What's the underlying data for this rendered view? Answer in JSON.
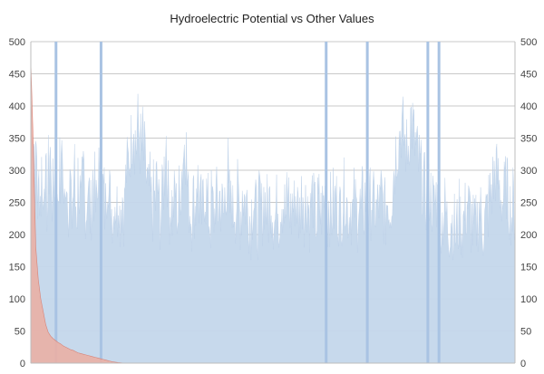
{
  "chart_data": {
    "type": "area",
    "title": "Hydroelectric Potential vs Other Values",
    "xlabel": "",
    "ylabel": "",
    "ylim": [
      0,
      500
    ],
    "yticks": [
      0,
      50,
      100,
      150,
      200,
      250,
      300,
      350,
      400,
      450,
      500
    ],
    "secondary_ylim": [
      0,
      500
    ],
    "grid": true,
    "legend": "none",
    "series": [
      {
        "kind": "spiky-area",
        "color": "#c5d7ec",
        "values": [
          400,
          360,
          340,
          300,
          330,
          250,
          280,
          260,
          300,
          240,
          310,
          270,
          250,
          300,
          330,
          280,
          260,
          290,
          250,
          230,
          270,
          300,
          280,
          350,
          260,
          240,
          300,
          270,
          250,
          280,
          230,
          260,
          300,
          250,
          240,
          290,
          260,
          230,
          270,
          300,
          250,
          240,
          280,
          260,
          230,
          250,
          290,
          270,
          240,
          260,
          300,
          250,
          230,
          270,
          260,
          240,
          280,
          300,
          260,
          250,
          240,
          230,
          260,
          250,
          240,
          270,
          230,
          250,
          260,
          240,
          280,
          300,
          310,
          320,
          340,
          360,
          380,
          350,
          340,
          370,
          360,
          340,
          330,
          350,
          320,
          300,
          280,
          260,
          270,
          250,
          240,
          260,
          250,
          280,
          270,
          240,
          230,
          250,
          280,
          300,
          350,
          300,
          260,
          240,
          250,
          230,
          250,
          270,
          240,
          230,
          260,
          280,
          300,
          320,
          360,
          330,
          280,
          250,
          240,
          230,
          260,
          250,
          240,
          290,
          280,
          250,
          240,
          230,
          250,
          270,
          260,
          240,
          230,
          220,
          250,
          240,
          230,
          260,
          250,
          240,
          260,
          250,
          240,
          230,
          260,
          280,
          300,
          250,
          240,
          260,
          230,
          250,
          240,
          260,
          250,
          230,
          240,
          270,
          260,
          250,
          250,
          240,
          230,
          220,
          240,
          260,
          250,
          230,
          220,
          240,
          250,
          230,
          240,
          260,
          250,
          240,
          230,
          250,
          260,
          240,
          230,
          220,
          240,
          250,
          230,
          240,
          260,
          250,
          240,
          230,
          250,
          260,
          240,
          230,
          250,
          240,
          260,
          250,
          240,
          230,
          250,
          260,
          270,
          240,
          250,
          260,
          240,
          230,
          250,
          260,
          240,
          230,
          220,
          240,
          250,
          230,
          240,
          250,
          260,
          240,
          230,
          250,
          240,
          230,
          250,
          240,
          260,
          250,
          240,
          230,
          250,
          240,
          260,
          270,
          250,
          240,
          230,
          250,
          240,
          230,
          250,
          240,
          230,
          250,
          240,
          230,
          250,
          240,
          260,
          250,
          230,
          240,
          250,
          260,
          240,
          250,
          230,
          240,
          250,
          240,
          260,
          250,
          240,
          230,
          250,
          260,
          240,
          250,
          270,
          300,
          310,
          330,
          340,
          350,
          360,
          370,
          360,
          350,
          340,
          330,
          340,
          360,
          380,
          370,
          350,
          340,
          330,
          320,
          310,
          300,
          290,
          280,
          270,
          260,
          250,
          260,
          270,
          260,
          250,
          240,
          250,
          260,
          250,
          240,
          230,
          220,
          230,
          240,
          230,
          220,
          210,
          220,
          230,
          220,
          210,
          200,
          210,
          220,
          230,
          220,
          210,
          220,
          230,
          240,
          250,
          240,
          230,
          220,
          210,
          200,
          210,
          220,
          230,
          240,
          230,
          220,
          210,
          220,
          230,
          240,
          250,
          260,
          270,
          280,
          290,
          300,
          290,
          280,
          270,
          260,
          250,
          260,
          270,
          280,
          260,
          250,
          240,
          230,
          250,
          240
        ],
        "spikes": [
          {
            "index": 0.052,
            "value": 500
          },
          {
            "index": 0.145,
            "value": 500
          },
          {
            "index": 0.61,
            "value": 500
          },
          {
            "index": 0.695,
            "value": 500
          },
          {
            "index": 0.82,
            "value": 500
          },
          {
            "index": 0.843,
            "value": 500
          }
        ]
      },
      {
        "kind": "declining-area",
        "color": "#eab0a6",
        "stroke": "#d97a6b",
        "values": [
          470,
          340,
          180,
          130,
          100,
          80,
          60,
          48,
          42,
          38,
          35,
          32,
          30,
          27,
          25,
          23,
          21,
          20,
          18,
          16,
          15,
          14,
          13,
          12,
          11,
          10,
          9,
          8,
          7,
          6,
          5,
          4,
          3,
          2,
          1.5,
          1,
          0.6,
          0.3,
          0,
          0
        ]
      }
    ]
  }
}
